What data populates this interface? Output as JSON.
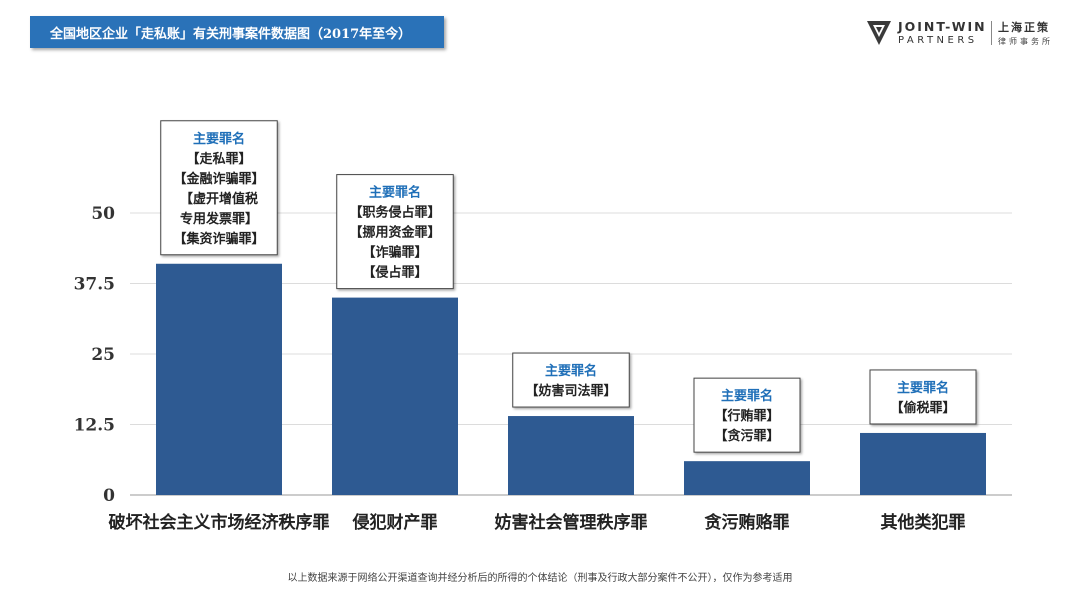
{
  "header": {
    "title": "全国地区企业「走私账」有关刑事案件数据图（2017年至今）"
  },
  "logo": {
    "line1": "JOINT-WIN",
    "line2": "PARTNERS",
    "cn1": "上海正策",
    "cn2": "律师事务所"
  },
  "colors": {
    "banner": "#2a72b8",
    "bar": "#2e5a92",
    "annotation_heading": "#1f6fb8"
  },
  "chart_data": {
    "type": "bar",
    "categories": [
      "破坏社会主义市场经济秩序罪",
      "侵犯财产罪",
      "妨害社会管理秩序罪",
      "贪污贿赂罪",
      "其他类犯罪"
    ],
    "values": [
      41,
      35,
      14,
      6,
      11
    ],
    "ylim": [
      0,
      50
    ],
    "yticks": [
      "0",
      "12.5",
      "25",
      "37.5",
      "50"
    ],
    "ytick_values": [
      0,
      12.5,
      25,
      37.5,
      50
    ],
    "grid": true,
    "annotations": [
      {
        "heading": "主要罪名",
        "lines": [
          "【走私罪】",
          "【金融诈骗罪】",
          "【虚开增值税",
          "专用发票罪】",
          "【集资诈骗罪】"
        ]
      },
      {
        "heading": "主要罪名",
        "lines": [
          "【职务侵占罪】",
          "【挪用资金罪】",
          "【诈骗罪】",
          "【侵占罪】"
        ]
      },
      {
        "heading": "主要罪名",
        "lines": [
          "【妨害司法罪】"
        ]
      },
      {
        "heading": "主要罪名",
        "lines": [
          "【行贿罪】",
          "【贪污罪】"
        ]
      },
      {
        "heading": "主要罪名",
        "lines": [
          "【偷税罪】"
        ]
      }
    ]
  },
  "footnote": "以上数据来源于网络公开渠道查询并经分析后的所得的个体结论（刑事及行政大部分案件不公开），仅作为参考适用"
}
